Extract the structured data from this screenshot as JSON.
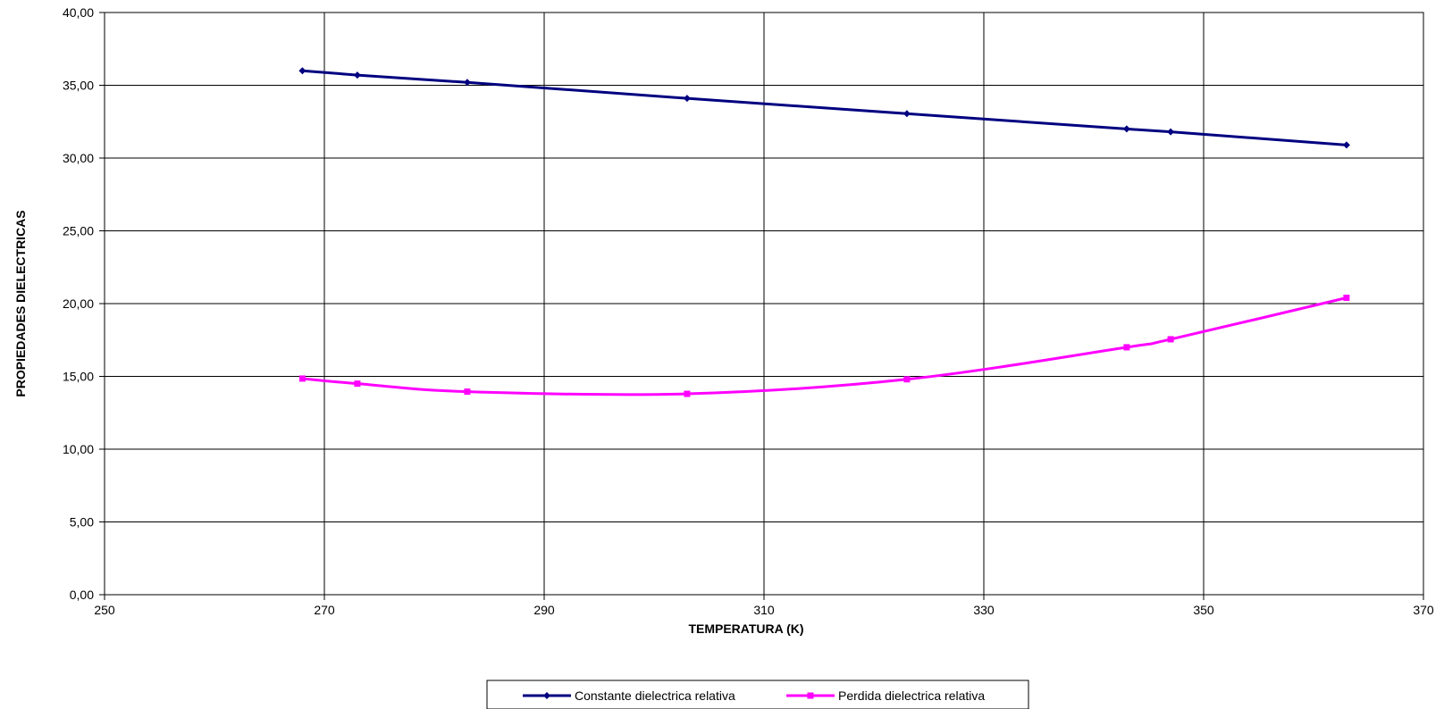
{
  "chart_data": {
    "type": "line",
    "xlabel": "TEMPERATURA (K)",
    "ylabel": "PROPIEDADES DIELECTRICAS",
    "xlim": [
      250,
      370
    ],
    "ylim": [
      0,
      40
    ],
    "x_ticks": [
      250,
      270,
      290,
      310,
      330,
      350,
      370
    ],
    "x_tick_labels": [
      "250",
      "270",
      "290",
      "310",
      "330",
      "350",
      "370"
    ],
    "y_ticks": [
      0,
      5,
      10,
      15,
      20,
      25,
      30,
      35,
      40
    ],
    "y_tick_labels": [
      "0,00",
      "5,00",
      "10,00",
      "15,00",
      "20,00",
      "25,00",
      "30,00",
      "35,00",
      "40,00"
    ],
    "grid": true,
    "legend_position": "bottom-center",
    "series": [
      {
        "name": "Constante dielectrica relativa",
        "color": "#000080",
        "marker": "diamond",
        "smooth": false,
        "x": [
          268,
          273,
          283,
          303,
          323,
          343,
          347,
          363
        ],
        "y": [
          36.0,
          35.7,
          35.2,
          34.1,
          33.05,
          32.0,
          31.8,
          30.9
        ]
      },
      {
        "name": "Perdida dielectrica relativa",
        "color": "#FF00FF",
        "marker": "square",
        "smooth": true,
        "x": [
          268,
          273,
          283,
          303,
          323,
          343,
          347,
          363
        ],
        "y": [
          14.85,
          14.5,
          13.95,
          13.8,
          14.8,
          17.0,
          17.55,
          20.4
        ]
      }
    ]
  }
}
